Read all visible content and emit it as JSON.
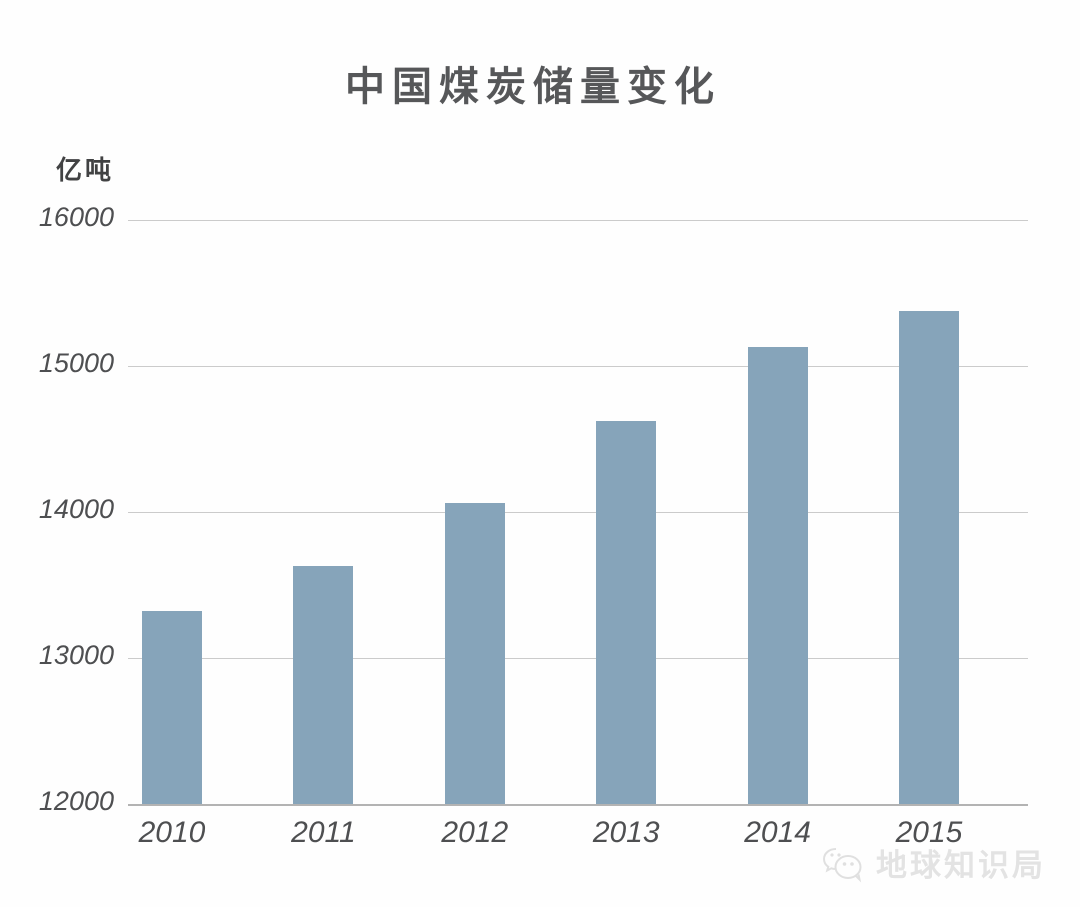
{
  "chart_data": {
    "type": "bar",
    "title": "中国煤炭储量变化",
    "unit_label": "亿吨",
    "categories": [
      "2010",
      "2011",
      "2012",
      "2013",
      "2014",
      "2015"
    ],
    "values": [
      13320,
      13630,
      14060,
      14620,
      15130,
      15380
    ],
    "xlabel": "",
    "ylabel": "亿吨",
    "ylim": [
      12000,
      16000
    ],
    "yticks": [
      12000,
      13000,
      14000,
      15000,
      16000
    ],
    "grid": true,
    "legend": "none",
    "bar_color": "#86a4ba",
    "gridline_color": "#cbcbcb",
    "axis_color": "#b3b3b3",
    "text_color": "#565759",
    "tick_color": "#4e4f51"
  },
  "watermark": {
    "text": "地球知识局",
    "logo": "globe-chat-bubbles-logo",
    "color": "#e3e3e3"
  }
}
